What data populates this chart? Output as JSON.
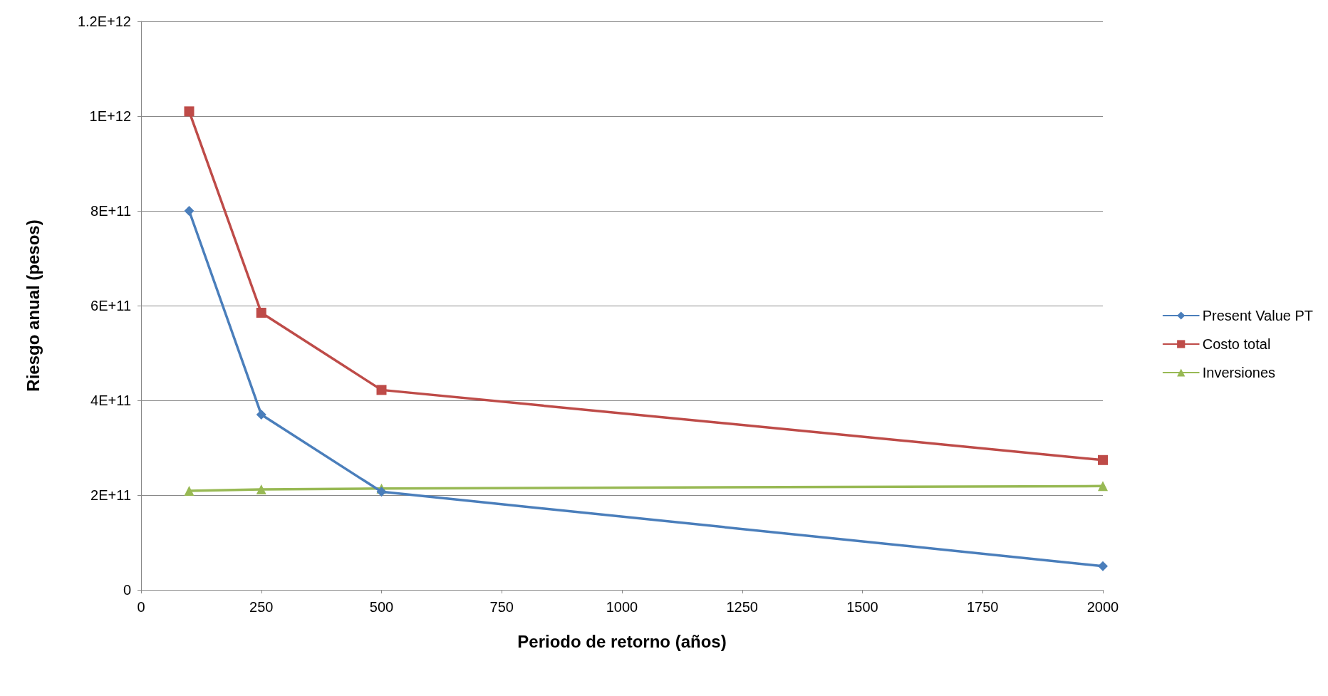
{
  "chart_data": {
    "type": "line",
    "xlabel": "Periodo de retorno (años)",
    "ylabel": "Riesgo anual (pesos)",
    "xlim": [
      0,
      2000
    ],
    "xticks": [
      0,
      250,
      500,
      750,
      1000,
      1250,
      1500,
      1750,
      2000
    ],
    "ylim": [
      0,
      1200000000000
    ],
    "yticks": [
      0,
      {
        "value": 200000000000,
        "label": "2E+11"
      },
      {
        "value": 400000000000,
        "label": "4E+11"
      },
      {
        "value": 600000000000,
        "label": "6E+11"
      },
      {
        "value": 800000000000,
        "label": "8E+11"
      },
      {
        "value": 1000000000000,
        "label": "1E+12"
      },
      {
        "value": 1200000000000,
        "label": "1.2E+12"
      }
    ],
    "grid": "y",
    "legend": "right",
    "line_style": "solid",
    "series": [
      {
        "name": "Present Value PT",
        "color": "#4a7ebb",
        "marker": "diamond",
        "x": [
          100,
          250,
          500,
          2000
        ],
        "values": [
          800000000000,
          370000000000,
          207000000000,
          50000000000
        ]
      },
      {
        "name": "Costo total",
        "color": "#be4b48",
        "marker": "square",
        "x": [
          100,
          250,
          500,
          2000
        ],
        "values": [
          1010000000000,
          585000000000,
          422000000000,
          274000000000
        ]
      },
      {
        "name": "Inversiones",
        "color": "#98b954",
        "marker": "triangle",
        "x": [
          100,
          250,
          500,
          2000
        ],
        "values": [
          209000000000,
          212000000000,
          214000000000,
          219000000000
        ]
      }
    ]
  }
}
